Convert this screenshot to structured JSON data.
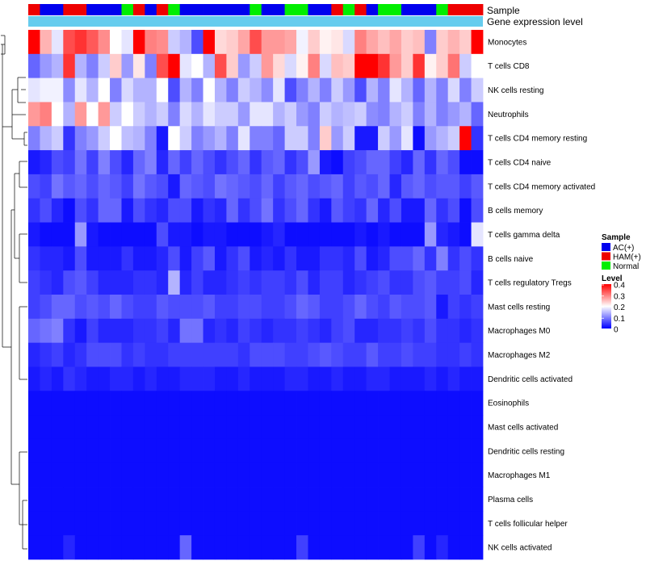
{
  "chart_data": {
    "type": "heatmap",
    "title": "",
    "annotation_rows": [
      "Sample",
      "Gene expression level"
    ],
    "rows": [
      "Monocytes",
      "T cells CD8",
      "NK cells resting",
      "Neutrophils",
      "T cells CD4 memory resting",
      "T cells CD4 naive",
      "T cells CD4 memory activated",
      "B cells memory",
      "T cells gamma delta",
      "B cells naive",
      "T cells regulatory  Tregs",
      "Mast cells resting",
      "Macrophages M0",
      "Macrophages M2",
      "Dendritic cells activated",
      "Eosinophils",
      "Mast cells activated",
      "Dendritic cells resting",
      "Macrophages M1",
      "Plasma cells",
      "T cells follicular helper",
      "NK cells activated"
    ],
    "samples": [
      "HAM(+)",
      "AC(+)",
      "AC(+)",
      "HAM(+)",
      "HAM(+)",
      "AC(+)",
      "AC(+)",
      "AC(+)",
      "Normal",
      "HAM(+)",
      "AC(+)",
      "HAM(+)",
      "Normal",
      "AC(+)",
      "AC(+)",
      "AC(+)",
      "AC(+)",
      "AC(+)",
      "AC(+)",
      "Normal",
      "AC(+)",
      "AC(+)",
      "Normal",
      "Normal",
      "AC(+)",
      "AC(+)",
      "HAM(+)",
      "Normal",
      "HAM(+)",
      "AC(+)",
      "Normal",
      "Normal",
      "AC(+)",
      "AC(+)",
      "AC(+)",
      "Normal",
      "HAM(+)",
      "HAM(+)",
      "HAM(+)"
    ],
    "values": [
      [
        0.4,
        0.26,
        0.18,
        0.34,
        0.36,
        0.33,
        0.29,
        0.2,
        0.18,
        0.4,
        0.3,
        0.29,
        0.16,
        0.14,
        0.06,
        0.4,
        0.23,
        0.24,
        0.27,
        0.34,
        0.28,
        0.28,
        0.27,
        0.19,
        0.24,
        0.21,
        0.22,
        0.17,
        0.3,
        0.27,
        0.25,
        0.27,
        0.24,
        0.25,
        0.1,
        0.24,
        0.26,
        0.24,
        0.4
      ],
      [
        0.08,
        0.12,
        0.14,
        0.36,
        0.14,
        0.1,
        0.16,
        0.24,
        0.12,
        0.22,
        0.1,
        0.34,
        0.4,
        0.18,
        0.2,
        0.14,
        0.34,
        0.24,
        0.12,
        0.16,
        0.28,
        0.23,
        0.17,
        0.21,
        0.3,
        0.17,
        0.25,
        0.24,
        0.4,
        0.4,
        0.36,
        0.28,
        0.24,
        0.36,
        0.21,
        0.24,
        0.31,
        0.16,
        0.2
      ],
      [
        0.18,
        0.19,
        0.19,
        0.11,
        0.18,
        0.14,
        0.2,
        0.1,
        0.17,
        0.14,
        0.14,
        0.2,
        0.06,
        0.14,
        0.1,
        0.2,
        0.14,
        0.1,
        0.16,
        0.14,
        0.11,
        0.18,
        0.06,
        0.1,
        0.14,
        0.1,
        0.16,
        0.12,
        0.06,
        0.14,
        0.1,
        0.18,
        0.14,
        0.08,
        0.14,
        0.1,
        0.17,
        0.1,
        0.16
      ],
      [
        0.28,
        0.3,
        0.2,
        0.14,
        0.28,
        0.2,
        0.28,
        0.16,
        0.2,
        0.16,
        0.14,
        0.16,
        0.1,
        0.17,
        0.14,
        0.18,
        0.16,
        0.16,
        0.12,
        0.18,
        0.18,
        0.14,
        0.16,
        0.12,
        0.1,
        0.16,
        0.14,
        0.15,
        0.16,
        0.11,
        0.1,
        0.14,
        0.16,
        0.1,
        0.14,
        0.1,
        0.12,
        0.14,
        0.08
      ],
      [
        0.1,
        0.14,
        0.16,
        0.04,
        0.1,
        0.12,
        0.16,
        0.2,
        0.15,
        0.14,
        0.1,
        0.02,
        0.2,
        0.16,
        0.1,
        0.12,
        0.14,
        0.1,
        0.18,
        0.1,
        0.1,
        0.08,
        0.16,
        0.16,
        0.1,
        0.24,
        0.12,
        0.16,
        0.02,
        0.02,
        0.16,
        0.12,
        0.18,
        0.01,
        0.12,
        0.14,
        0.16,
        0.4,
        0.04
      ],
      [
        0.02,
        0.03,
        0.06,
        0.05,
        0.09,
        0.05,
        0.1,
        0.06,
        0.03,
        0.08,
        0.1,
        0.03,
        0.08,
        0.05,
        0.08,
        0.06,
        0.04,
        0.06,
        0.08,
        0.04,
        0.07,
        0.08,
        0.04,
        0.06,
        0.12,
        0.02,
        0.01,
        0.05,
        0.06,
        0.08,
        0.08,
        0.05,
        0.03,
        0.08,
        0.04,
        0.08,
        0.06,
        0.01,
        0.01
      ],
      [
        0.06,
        0.05,
        0.09,
        0.07,
        0.08,
        0.06,
        0.08,
        0.07,
        0.05,
        0.09,
        0.07,
        0.06,
        0.02,
        0.08,
        0.07,
        0.06,
        0.09,
        0.08,
        0.07,
        0.06,
        0.08,
        0.05,
        0.07,
        0.08,
        0.06,
        0.07,
        0.08,
        0.05,
        0.07,
        0.06,
        0.08,
        0.03,
        0.07,
        0.08,
        0.06,
        0.07,
        0.07,
        0.05,
        0.07
      ],
      [
        0.04,
        0.06,
        0.03,
        0.01,
        0.06,
        0.04,
        0.08,
        0.08,
        0.02,
        0.06,
        0.04,
        0.03,
        0.06,
        0.06,
        0.02,
        0.04,
        0.03,
        0.08,
        0.04,
        0.06,
        0.09,
        0.04,
        0.06,
        0.08,
        0.04,
        0.02,
        0.07,
        0.05,
        0.04,
        0.08,
        0.03,
        0.06,
        0.02,
        0.02,
        0.08,
        0.04,
        0.06,
        0.01,
        0.06
      ],
      [
        0.02,
        0.01,
        0.01,
        0.01,
        0.12,
        0.02,
        0.01,
        0.01,
        0.01,
        0.01,
        0.01,
        0.06,
        0.02,
        0.02,
        0.01,
        0.02,
        0.02,
        0.01,
        0.01,
        0.01,
        0.02,
        0.03,
        0.01,
        0.01,
        0.01,
        0.01,
        0.01,
        0.01,
        0.02,
        0.01,
        0.02,
        0.01,
        0.01,
        0.01,
        0.12,
        0.03,
        0.02,
        0.01,
        0.18
      ],
      [
        0.04,
        0.03,
        0.03,
        0.02,
        0.06,
        0.02,
        0.02,
        0.02,
        0.04,
        0.02,
        0.02,
        0.03,
        0.06,
        0.02,
        0.05,
        0.07,
        0.02,
        0.04,
        0.06,
        0.02,
        0.03,
        0.02,
        0.04,
        0.02,
        0.02,
        0.04,
        0.04,
        0.03,
        0.06,
        0.02,
        0.03,
        0.06,
        0.06,
        0.08,
        0.04,
        0.1,
        0.04,
        0.06,
        0.04
      ],
      [
        0.05,
        0.04,
        0.03,
        0.06,
        0.07,
        0.05,
        0.03,
        0.03,
        0.03,
        0.04,
        0.04,
        0.03,
        0.14,
        0.03,
        0.05,
        0.03,
        0.03,
        0.04,
        0.05,
        0.04,
        0.05,
        0.05,
        0.04,
        0.06,
        0.03,
        0.05,
        0.05,
        0.03,
        0.04,
        0.05,
        0.06,
        0.04,
        0.04,
        0.06,
        0.07,
        0.05,
        0.05,
        0.06,
        0.03
      ],
      [
        0.05,
        0.06,
        0.08,
        0.08,
        0.06,
        0.07,
        0.06,
        0.08,
        0.06,
        0.05,
        0.05,
        0.07,
        0.06,
        0.06,
        0.06,
        0.07,
        0.05,
        0.05,
        0.06,
        0.06,
        0.05,
        0.05,
        0.06,
        0.08,
        0.07,
        0.05,
        0.05,
        0.06,
        0.08,
        0.06,
        0.05,
        0.07,
        0.06,
        0.06,
        0.07,
        0.02,
        0.05,
        0.04,
        0.05
      ],
      [
        0.08,
        0.09,
        0.1,
        0.04,
        0.02,
        0.05,
        0.03,
        0.03,
        0.03,
        0.04,
        0.04,
        0.05,
        0.03,
        0.09,
        0.09,
        0.03,
        0.04,
        0.03,
        0.05,
        0.04,
        0.03,
        0.04,
        0.04,
        0.05,
        0.04,
        0.03,
        0.05,
        0.06,
        0.03,
        0.03,
        0.04,
        0.04,
        0.05,
        0.04,
        0.06,
        0.04,
        0.04,
        0.03,
        0.04
      ],
      [
        0.03,
        0.04,
        0.05,
        0.03,
        0.04,
        0.06,
        0.06,
        0.06,
        0.04,
        0.05,
        0.04,
        0.04,
        0.05,
        0.05,
        0.05,
        0.05,
        0.05,
        0.05,
        0.04,
        0.06,
        0.06,
        0.06,
        0.05,
        0.05,
        0.06,
        0.07,
        0.06,
        0.05,
        0.05,
        0.07,
        0.05,
        0.05,
        0.06,
        0.05,
        0.05,
        0.04,
        0.04,
        0.05,
        0.04
      ],
      [
        0.02,
        0.03,
        0.02,
        0.04,
        0.03,
        0.02,
        0.02,
        0.03,
        0.03,
        0.02,
        0.03,
        0.02,
        0.02,
        0.03,
        0.03,
        0.03,
        0.02,
        0.02,
        0.03,
        0.02,
        0.02,
        0.02,
        0.03,
        0.03,
        0.02,
        0.02,
        0.03,
        0.02,
        0.02,
        0.03,
        0.03,
        0.02,
        0.02,
        0.02,
        0.03,
        0.02,
        0.03,
        0.02,
        0.02
      ],
      [
        0.01,
        0.01,
        0.01,
        0.01,
        0.01,
        0.01,
        0.01,
        0.01,
        0.01,
        0.01,
        0.01,
        0.01,
        0.01,
        0.01,
        0.01,
        0.01,
        0.01,
        0.01,
        0.01,
        0.01,
        0.01,
        0.01,
        0.01,
        0.01,
        0.01,
        0.01,
        0.01,
        0.01,
        0.01,
        0.01,
        0.01,
        0.01,
        0.01,
        0.01,
        0.01,
        0.01,
        0.01,
        0.01,
        0.01
      ],
      [
        0.01,
        0.01,
        0.01,
        0.01,
        0.01,
        0.01,
        0.01,
        0.01,
        0.01,
        0.01,
        0.01,
        0.01,
        0.01,
        0.01,
        0.01,
        0.01,
        0.01,
        0.01,
        0.01,
        0.01,
        0.01,
        0.01,
        0.01,
        0.01,
        0.01,
        0.01,
        0.01,
        0.01,
        0.01,
        0.01,
        0.01,
        0.01,
        0.01,
        0.01,
        0.01,
        0.01,
        0.01,
        0.01,
        0.01
      ],
      [
        0.01,
        0.01,
        0.01,
        0.01,
        0.01,
        0.01,
        0.01,
        0.01,
        0.01,
        0.01,
        0.01,
        0.01,
        0.01,
        0.01,
        0.01,
        0.01,
        0.01,
        0.01,
        0.01,
        0.01,
        0.01,
        0.01,
        0.01,
        0.01,
        0.01,
        0.01,
        0.01,
        0.01,
        0.01,
        0.01,
        0.01,
        0.01,
        0.01,
        0.01,
        0.01,
        0.01,
        0.01,
        0.01,
        0.01
      ],
      [
        0.01,
        0.01,
        0.01,
        0.01,
        0.01,
        0.01,
        0.01,
        0.01,
        0.01,
        0.01,
        0.01,
        0.01,
        0.01,
        0.01,
        0.01,
        0.01,
        0.01,
        0.01,
        0.01,
        0.01,
        0.01,
        0.01,
        0.01,
        0.01,
        0.01,
        0.01,
        0.01,
        0.01,
        0.01,
        0.01,
        0.01,
        0.01,
        0.01,
        0.01,
        0.01,
        0.01,
        0.01,
        0.01,
        0.01
      ],
      [
        0.01,
        0.01,
        0.01,
        0.01,
        0.01,
        0.01,
        0.01,
        0.01,
        0.01,
        0.01,
        0.01,
        0.01,
        0.01,
        0.01,
        0.01,
        0.01,
        0.01,
        0.01,
        0.01,
        0.01,
        0.01,
        0.01,
        0.01,
        0.01,
        0.01,
        0.01,
        0.01,
        0.01,
        0.01,
        0.01,
        0.01,
        0.01,
        0.01,
        0.01,
        0.01,
        0.01,
        0.01,
        0.01,
        0.01
      ],
      [
        0.01,
        0.01,
        0.01,
        0.01,
        0.01,
        0.01,
        0.01,
        0.01,
        0.01,
        0.01,
        0.01,
        0.01,
        0.01,
        0.01,
        0.01,
        0.01,
        0.01,
        0.01,
        0.01,
        0.01,
        0.01,
        0.01,
        0.01,
        0.01,
        0.01,
        0.01,
        0.01,
        0.01,
        0.01,
        0.01,
        0.01,
        0.01,
        0.01,
        0.01,
        0.01,
        0.01,
        0.01,
        0.01,
        0.01
      ],
      [
        0.01,
        0.01,
        0.01,
        0.03,
        0.01,
        0.01,
        0.01,
        0.01,
        0.01,
        0.01,
        0.01,
        0.01,
        0.01,
        0.08,
        0.01,
        0.01,
        0.01,
        0.01,
        0.01,
        0.01,
        0.01,
        0.01,
        0.01,
        0.05,
        0.01,
        0.01,
        0.01,
        0.01,
        0.01,
        0.01,
        0.01,
        0.01,
        0.01,
        0.05,
        0.01,
        0.03,
        0.01,
        0.01,
        0.01
      ]
    ],
    "sample_legend": {
      "title": "Sample",
      "entries": [
        {
          "label": "AC(+)",
          "color": "#0000ee"
        },
        {
          "label": "HAM(+)",
          "color": "#ee0000"
        },
        {
          "label": "Normal",
          "color": "#00ee00"
        }
      ]
    },
    "level_legend": {
      "title": "Level",
      "ticks": [
        "0.4",
        "0.3",
        "0.2",
        "0.1",
        "0"
      ],
      "range": [
        0,
        0.4
      ],
      "colors": {
        "low": "#0000ff",
        "mid": "#ffffff",
        "high": "#ff0000"
      }
    },
    "gene_expression_color": "#66ccee"
  }
}
